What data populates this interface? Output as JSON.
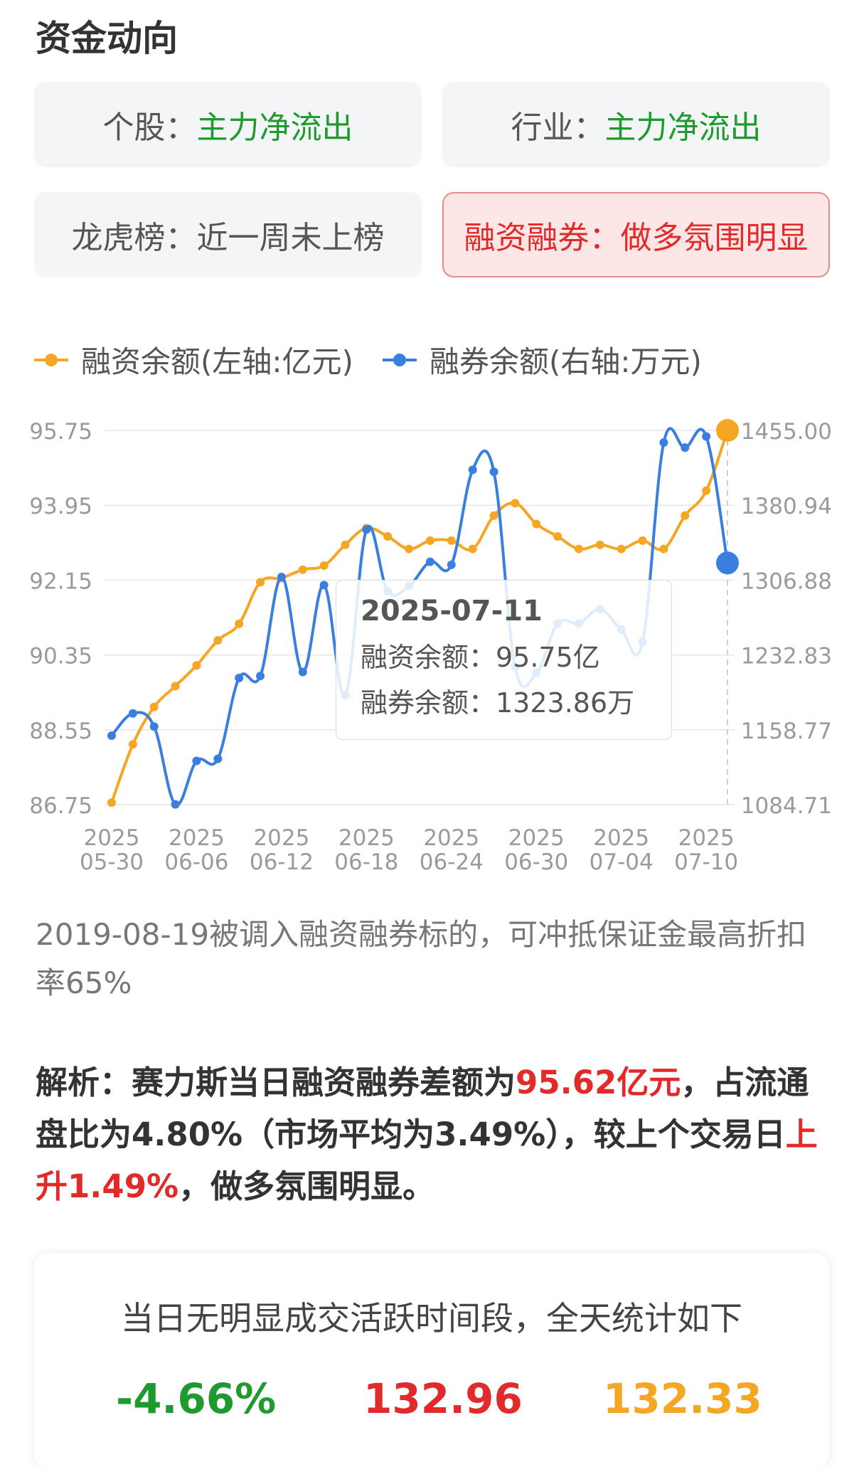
{
  "section_title": "资金动向",
  "cards": [
    {
      "label": "个股：",
      "value": "主力净流出",
      "alert": false
    },
    {
      "label": "行业：",
      "value": "主力净流出",
      "alert": false
    },
    {
      "label": "龙虎榜：",
      "value": "近一周未上榜",
      "alert": false
    },
    {
      "label": "融资融券：",
      "value": "做多氛围明显",
      "alert": true
    }
  ],
  "colors": {
    "financing": "#f5a623",
    "securities": "#3a7fe0",
    "up": "#e32a2a",
    "down": "#1f9a2e",
    "neutral": "#f5a623"
  },
  "chart_data": {
    "type": "line",
    "legend": [
      {
        "name": "融资余额(左轴:亿元)",
        "icon": "line-dot-icon"
      },
      {
        "name": "融券余额(右轴:万元)",
        "icon": "line-dot-icon"
      }
    ],
    "x": [
      "2025-05-30",
      "2025-06-03",
      "2025-06-04",
      "2025-06-05",
      "2025-06-06",
      "2025-06-09",
      "2025-06-10",
      "2025-06-11",
      "2025-06-12",
      "2025-06-13",
      "2025-06-16",
      "2025-06-17",
      "2025-06-18",
      "2025-06-19",
      "2025-06-20",
      "2025-06-23",
      "2025-06-24",
      "2025-06-25",
      "2025-06-26",
      "2025-06-27",
      "2025-06-30",
      "2025-07-01",
      "2025-07-02",
      "2025-07-03",
      "2025-07-04",
      "2025-07-07",
      "2025-07-08",
      "2025-07-09",
      "2025-07-10",
      "2025-07-11"
    ],
    "x_ticks": [
      {
        "year": "2025",
        "md": "05-30"
      },
      {
        "year": "2025",
        "md": "06-06"
      },
      {
        "year": "2025",
        "md": "06-12"
      },
      {
        "year": "2025",
        "md": "06-18"
      },
      {
        "year": "2025",
        "md": "06-24"
      },
      {
        "year": "2025",
        "md": "06-30"
      },
      {
        "year": "2025",
        "md": "07-04"
      },
      {
        "year": "2025",
        "md": "07-10"
      }
    ],
    "series": [
      {
        "name": "融资余额(左轴:亿元)",
        "axis": "left",
        "values": [
          86.8,
          88.2,
          89.1,
          89.6,
          90.1,
          90.7,
          91.1,
          92.1,
          92.2,
          92.4,
          92.5,
          93.0,
          93.4,
          93.2,
          92.9,
          93.1,
          93.1,
          92.9,
          93.7,
          94.0,
          93.5,
          93.2,
          92.9,
          93.0,
          92.9,
          93.1,
          92.9,
          93.7,
          94.3,
          95.75
        ]
      },
      {
        "name": "融券余额(右轴:万元)",
        "axis": "right",
        "values": [
          1153,
          1175,
          1162,
          1085,
          1128,
          1130,
          1210,
          1212,
          1310,
          1216,
          1302,
          1193,
          1357,
          1296,
          1301,
          1325,
          1322,
          1416,
          1414,
          1221,
          1215,
          1264,
          1264,
          1278,
          1258,
          1246,
          1443,
          1438,
          1449,
          1323.86
        ]
      }
    ],
    "left_axis": {
      "ticks": [
        "95.75",
        "93.95",
        "92.15",
        "90.35",
        "88.55",
        "86.75"
      ],
      "ylim": [
        86.75,
        95.75
      ]
    },
    "right_axis": {
      "ticks": [
        "1455.00",
        "1380.94",
        "1306.88",
        "1232.83",
        "1158.77",
        "1084.71"
      ],
      "ylim": [
        1084.71,
        1455.0
      ]
    },
    "grid": true,
    "legend_position": "top-left",
    "tooltip": {
      "date": "2025-07-11",
      "rows": [
        "融资余额：95.75亿",
        "融券余额：1323.86万"
      ]
    }
  },
  "note": "2019-08-19被调入融资融券标的，可冲抵保证金最高折扣率65%",
  "analysis": {
    "prefix": "解析：赛力斯当日融资融券差额为",
    "value": "95.62亿元",
    "middle": "，占流通盘比为4.80%（市场平均为3.49%），较上个交易日",
    "change": "上升1.49%",
    "suffix": "，做多氛围明显。"
  },
  "stats": {
    "title": "当日无明显成交活跃时间段，全天统计如下",
    "values": [
      {
        "value": "-4.66%",
        "color": "down"
      },
      {
        "value": "132.96",
        "color": "up"
      },
      {
        "value": "132.33",
        "color": "neutral"
      }
    ]
  }
}
